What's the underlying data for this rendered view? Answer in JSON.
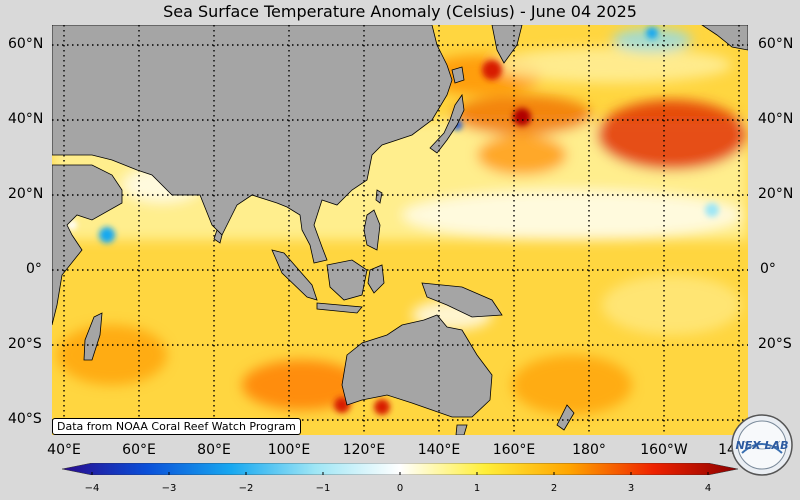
{
  "title": "Sea Surface Temperature Anomaly (Celsius) - June 04 2025",
  "lat_labels_left": [
    "60°N",
    "40°N",
    "20°N",
    "0°",
    "20°S",
    "40°S"
  ],
  "lat_labels_right": [
    "60°N",
    "40°N",
    "20°N",
    "0°",
    "20°S"
  ],
  "lon_labels": [
    "40°E",
    "60°E",
    "80°E",
    "100°E",
    "120°E",
    "140°E",
    "160°E",
    "180°",
    "160°W",
    "14"
  ],
  "credit": "Data from NOAA Coral Reef Watch Program",
  "colorbar": {
    "ticks": [
      "−4",
      "−3",
      "−2",
      "−1",
      "0",
      "1",
      "2",
      "3",
      "4"
    ],
    "colors": [
      "#2a0a8c",
      "#0a4fd8",
      "#18a8f0",
      "#9fe6f5",
      "#ffffff",
      "#ffef3a",
      "#ffa500",
      "#ee2200",
      "#8b0000"
    ]
  },
  "logo_text": "NEX LAB",
  "colors": {
    "land": "#a5a5a5",
    "ocean_base": "#ffd640",
    "background": "#d9d9d9"
  }
}
